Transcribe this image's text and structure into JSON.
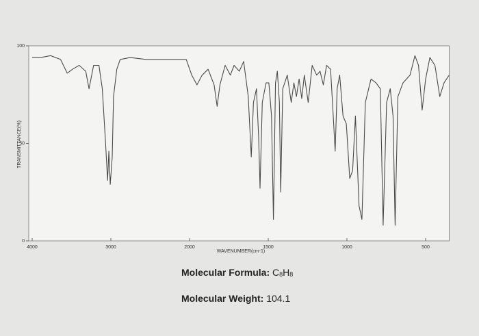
{
  "chart_data": {
    "type": "line",
    "ylabel": "TRANSMITTANCE(%)",
    "xlabel": "WAVENUMBER(cm-1)",
    "x": [
      4000,
      3891,
      3765,
      3639,
      3555,
      3487,
      3403,
      3319,
      3277,
      3219,
      3151,
      3109,
      3067,
      3042,
      3025,
      3008,
      2983,
      2966,
      2924,
      2882,
      2756,
      2546,
      2294,
      2042,
      1986,
      1953,
      1920,
      1882,
      1844,
      1825,
      1807,
      1774,
      1741,
      1717,
      1684,
      1656,
      1627,
      1608,
      1594,
      1575,
      1561,
      1552,
      1538,
      1514,
      1496,
      1479,
      1467,
      1454,
      1442,
      1429,
      1421,
      1408,
      1379,
      1354,
      1337,
      1321,
      1304,
      1287,
      1271,
      1246,
      1221,
      1192,
      1171,
      1150,
      1129,
      1104,
      1087,
      1075,
      1062,
      1046,
      1025,
      1004,
      982,
      964,
      946,
      923,
      905,
      883,
      847,
      815,
      788,
      770,
      748,
      725,
      707,
      694,
      676,
      644,
      599,
      568,
      545,
      522,
      500,
      473,
      441,
      410,
      383,
      351
    ],
    "values": [
      94,
      94,
      95,
      93,
      86,
      88,
      90,
      87,
      78,
      90,
      90,
      78,
      50,
      31,
      46,
      29,
      43,
      74,
      88,
      93,
      94,
      93,
      93,
      93,
      85,
      80,
      85,
      88,
      80,
      69,
      80,
      90,
      85,
      90,
      87,
      92,
      74,
      43,
      71,
      78,
      53,
      27,
      71,
      81,
      81,
      64,
      11,
      81,
      87,
      71,
      25,
      78,
      85,
      71,
      81,
      74,
      83,
      73,
      85,
      71,
      90,
      85,
      87,
      80,
      90,
      88,
      64,
      46,
      78,
      85,
      64,
      60,
      32,
      36,
      64,
      18,
      11,
      71,
      83,
      81,
      78,
      8,
      71,
      78,
      64,
      8,
      74,
      81,
      85,
      95,
      90,
      67,
      83,
      94,
      90,
      74,
      81,
      85
    ],
    "color": "#4a4a4a",
    "xlim": [
      4000,
      350
    ],
    "xticks": [
      4000,
      3000,
      2000,
      1500,
      1000,
      500
    ],
    "ylim": [
      0,
      100
    ],
    "yticks": [
      0,
      50,
      100
    ],
    "formula_label": "Molecular Formula:",
    "formula_parts": [
      "C",
      "8",
      "H",
      "8"
    ],
    "weight_label": "Molecular Weight:",
    "weight_value": "104.1"
  }
}
